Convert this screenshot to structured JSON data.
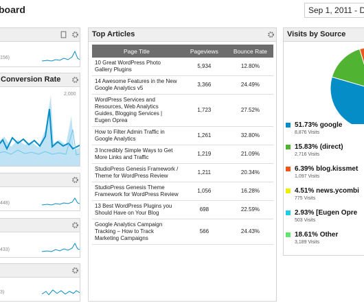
{
  "header": {
    "title": "board",
    "date_range": "Sep 1, 2011 - D"
  },
  "left_widgets": [
    {
      "summary": "156)"
    },
    {
      "title": "Conversion Rate",
      "axis_label": "2,000"
    },
    {
      "summary": "448)"
    },
    {
      "summary": "433)"
    },
    {
      "summary": "3)"
    }
  ],
  "top_articles": {
    "title": "Top Articles",
    "columns": [
      "Page Title",
      "Pageviews",
      "Bounce Rate"
    ],
    "rows": [
      [
        "10 Great WordPress Photo Gallery Plugins",
        "5,934",
        "12.80%"
      ],
      [
        "14 Awesome Features in the New Google Analytics v5",
        "3,366",
        "24.49%"
      ],
      [
        "WordPress Services and Resources, Web Analytics Guides, Blogging Services | Eugen Oprea",
        "1,723",
        "27.52%"
      ],
      [
        "How to Filter Admin Traffic in Google Analytics",
        "1,261",
        "32.80%"
      ],
      [
        "3 Incredibly Simple Ways to Get More Links and Traffic",
        "1,219",
        "21.09%"
      ],
      [
        "StudioPress Genesis Framework / Theme for WordPress Review",
        "1,211",
        "20.34%"
      ],
      [
        "StudioPress Genesis Theme Framework for WordPress Review",
        "1,056",
        "16.28%"
      ],
      [
        "13 Best WordPress Plugins you Should Have on Your Blog",
        "698",
        "22.59%"
      ],
      [
        "Google Analytics Campaign Tracking – How to Track Marketing Campaigns",
        "566",
        "24.43%"
      ]
    ]
  },
  "visits_by_source": {
    "title": "Visits by Source",
    "sources": [
      {
        "share": {
          "value": 51.73,
          "label": "51.73%"
        },
        "name": "google",
        "visits": "8,876 Visits",
        "color": "#058dc7"
      },
      {
        "share": {
          "value": 15.83,
          "label": "15.83%"
        },
        "name": "(direct)",
        "visits": "2,716 Visits",
        "color": "#50b432"
      },
      {
        "share": {
          "value": 6.39,
          "label": "6.39%"
        },
        "name": "blog.kissmet",
        "visits": "1,097 Visits",
        "color": "#ed561b"
      },
      {
        "share": {
          "value": 4.51,
          "label": "4.51%"
        },
        "name": "news.ycombi",
        "visits": "775 Visits",
        "color": "#edef00"
      },
      {
        "share": {
          "value": 2.93,
          "label": "2.93%"
        },
        "name": "[Eugen Opre",
        "visits": "503 Visits",
        "color": "#24cbe5"
      },
      {
        "share": {
          "value": 18.61,
          "label": "18.61%"
        },
        "name": "Other",
        "visits": "3,189 Visits",
        "color": "#64e572"
      }
    ]
  }
}
